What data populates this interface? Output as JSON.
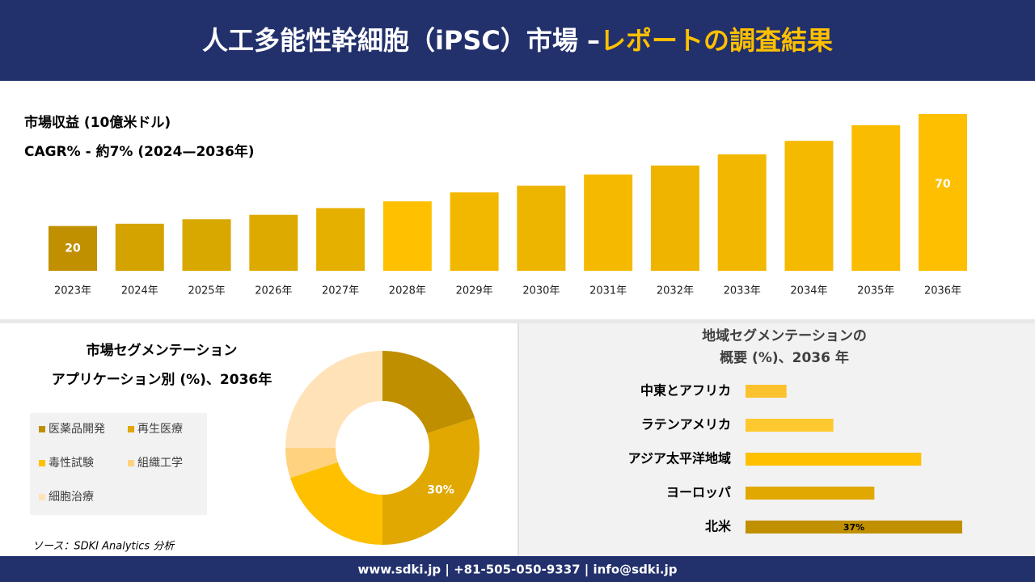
{
  "header": {
    "title_main": "人工多能性幹細胞（iPSC）市場 –",
    "title_highlight": "レポートの調査結果"
  },
  "chart_data": [
    {
      "type": "bar",
      "title": "市場収益 (10億米ドル)",
      "subtitle": "CAGR% - 約7% (2024—2036年)",
      "categories": [
        "2023年",
        "2024年",
        "2025年",
        "2026年",
        "2027年",
        "2028年",
        "2029年",
        "2030年",
        "2031年",
        "2032年",
        "2033年",
        "2034年",
        "2035年",
        "2036年"
      ],
      "values": [
        20,
        21,
        23,
        25,
        28,
        31,
        35,
        38,
        43,
        47,
        52,
        58,
        65,
        70
      ],
      "labeled": [
        0,
        13
      ],
      "colors": [
        "#c09000",
        "#d4a300",
        "#d9a800",
        "#ddab00",
        "#e6b000",
        "#ffc000",
        "#f2b800",
        "#eeb500",
        "#f5ba00",
        "#eeb400",
        "#f2b700",
        "#f5b900",
        "#f9bc00",
        "#fdbf00"
      ]
    },
    {
      "type": "donut",
      "title": "市場セグメンテーション",
      "subtitle": "アプリケーション別 (%)、2036年",
      "categories": [
        "医薬品開発",
        "再生医療",
        "毒性試験",
        "組織工学",
        "細胞治療"
      ],
      "values": [
        20,
        30,
        20,
        5,
        25
      ],
      "value_labels": [
        null,
        "30%",
        null,
        null,
        null
      ],
      "colors": [
        "#bf8f00",
        "#e0a800",
        "#ffc000",
        "#ffd280",
        "#ffe2b8"
      ]
    },
    {
      "type": "barh",
      "title": [
        "地域セグメンテーションの",
        "概要 (%)、2036 年"
      ],
      "categories": [
        "中東とアフリカ",
        "ラテンアメリカ",
        "アジア太平洋地域",
        "ヨーロッパ",
        "北米"
      ],
      "values": [
        7,
        15,
        30,
        22,
        37
      ],
      "value_labels": [
        null,
        null,
        null,
        null,
        "37%"
      ],
      "colors": [
        "#fcc22e",
        "#ffc82e",
        "#ffc000",
        "#e0a800",
        "#c09000"
      ]
    }
  ],
  "source": "ソース：SDKI Analytics 分析",
  "footer": "www.sdki.jp | +81-505-050-9337 | info@sdki.jp"
}
